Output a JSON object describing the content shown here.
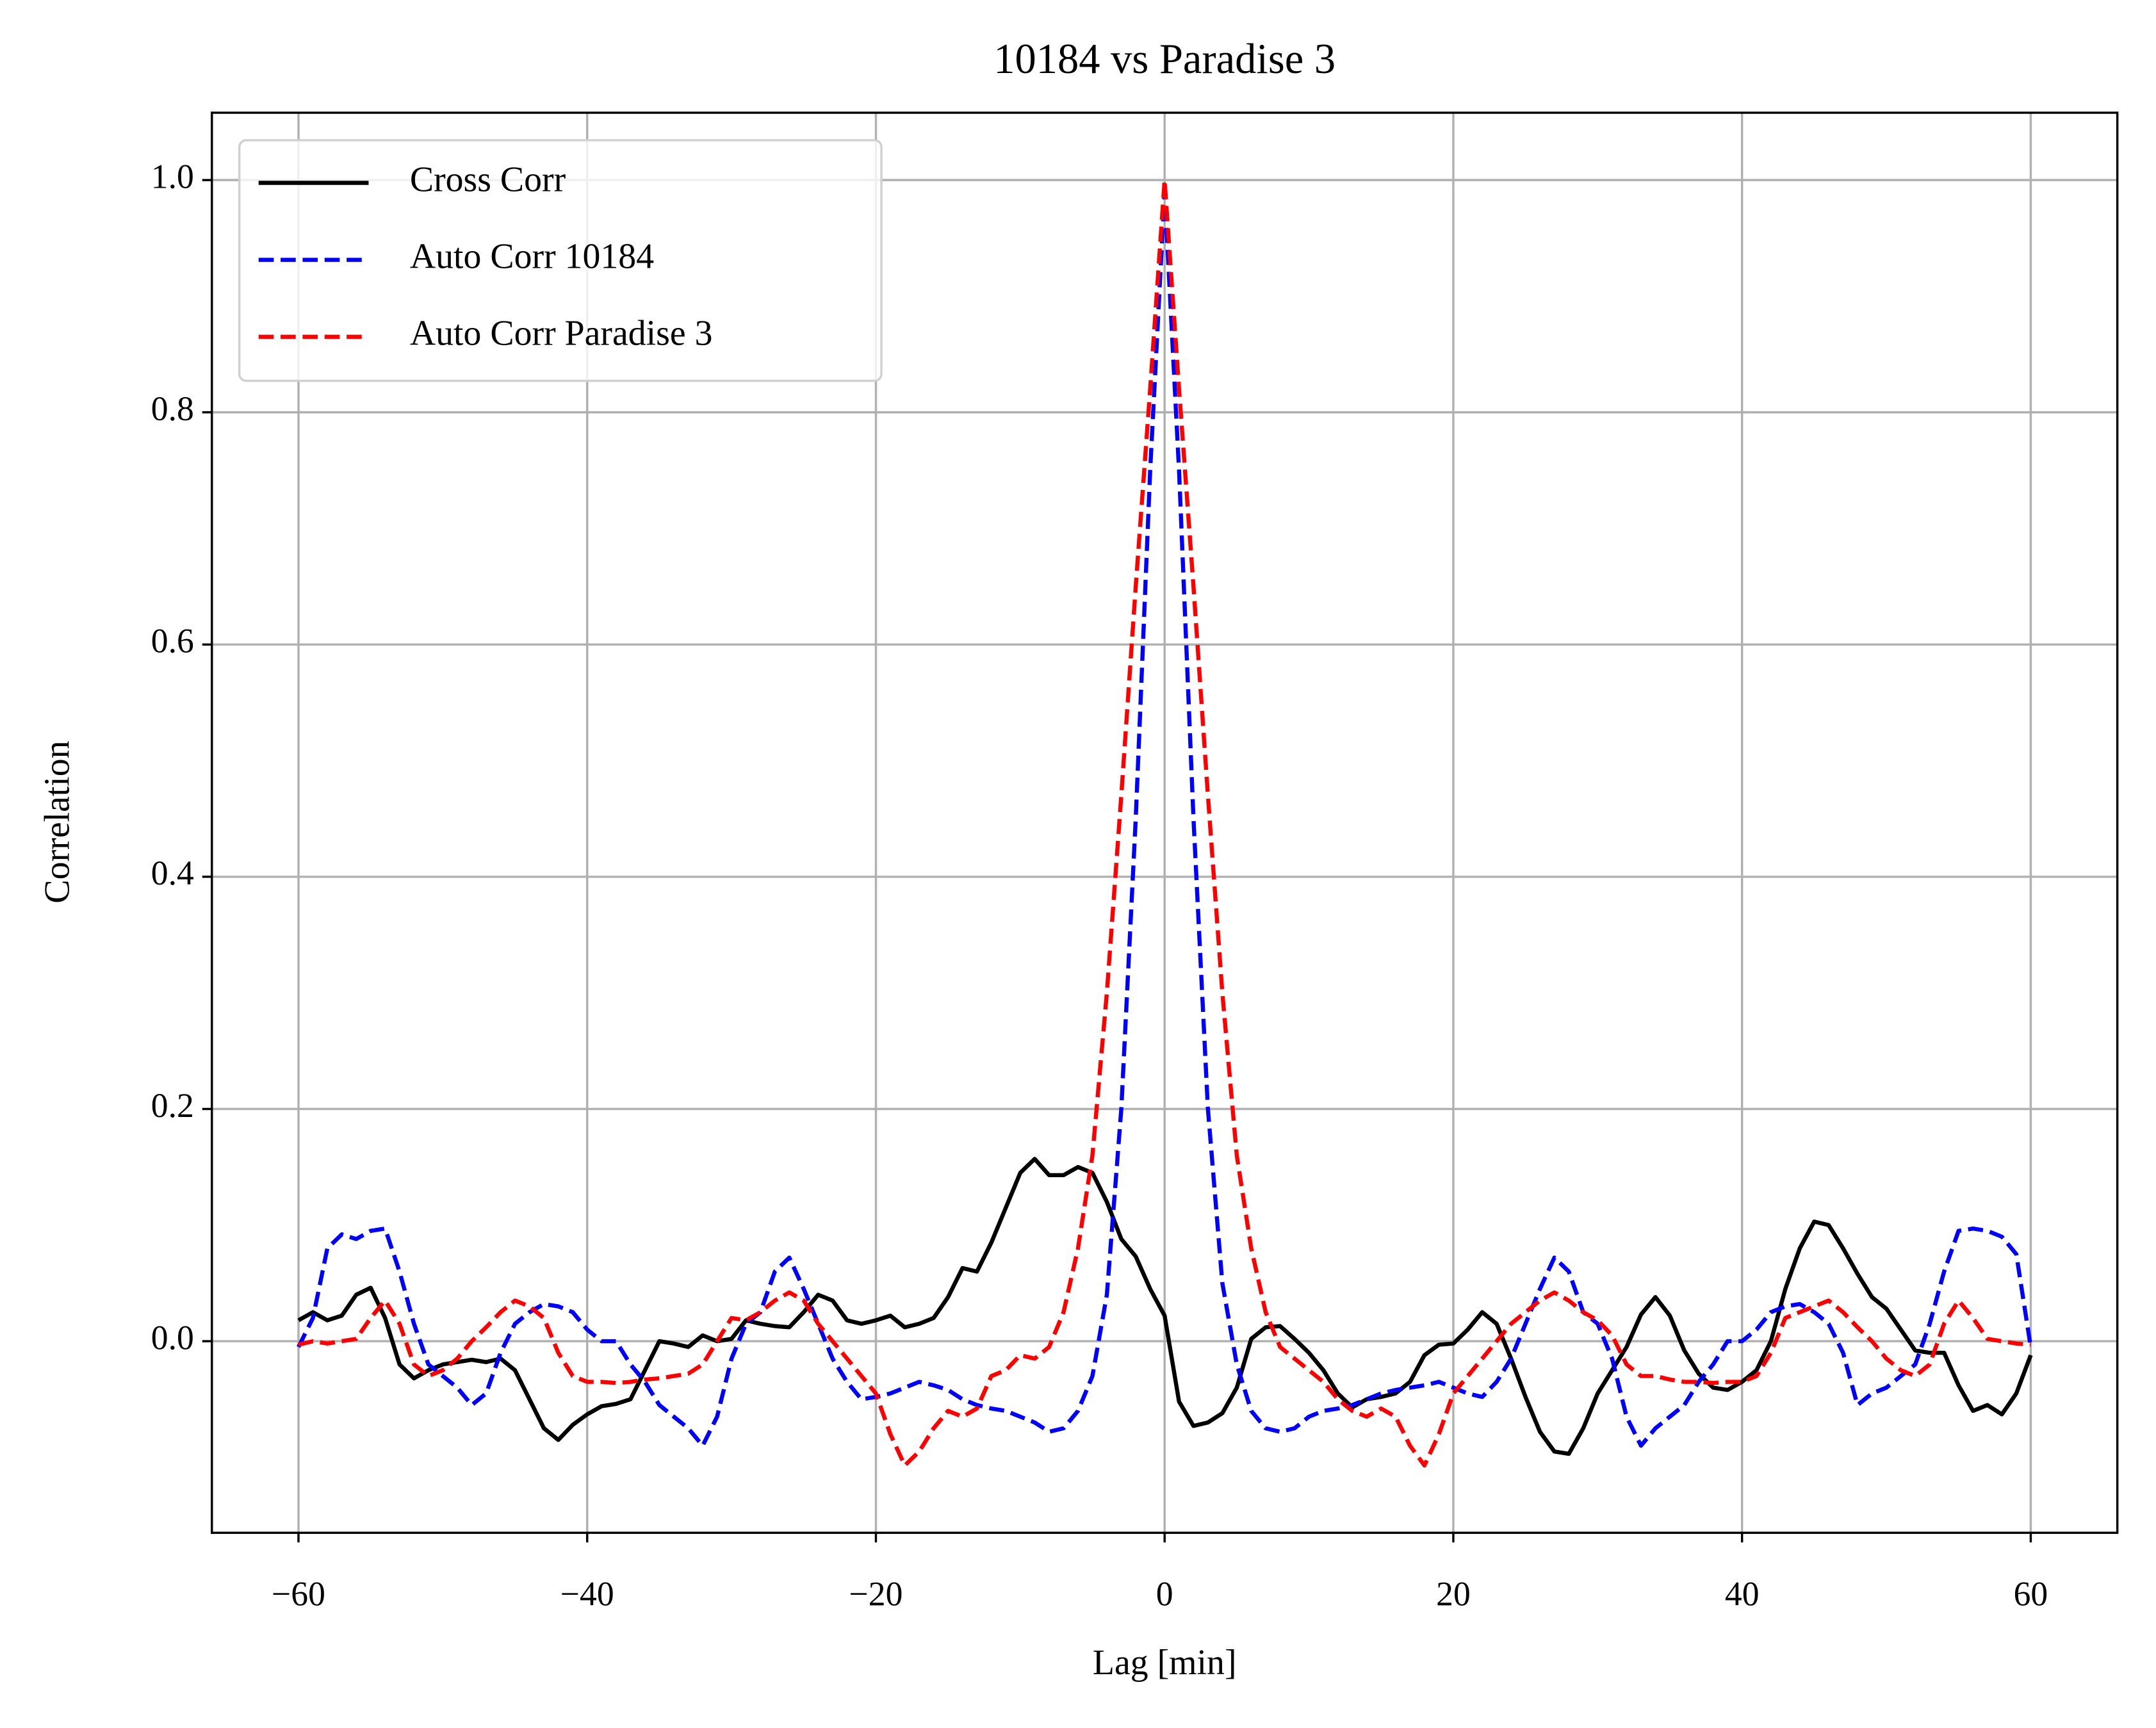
{
  "chart_data": {
    "type": "line",
    "title": "10184 vs Paradise 3",
    "xlabel": "Lag [min]",
    "ylabel": "Correlation",
    "xlim": [
      -66,
      66
    ],
    "ylim": [
      -0.165,
      1.058
    ],
    "xticks": [
      {
        "value": -60,
        "label": "−60"
      },
      {
        "value": -40,
        "label": "−40"
      },
      {
        "value": -20,
        "label": "−20"
      },
      0,
      20,
      40,
      60
    ],
    "yticks": [
      {
        "value": 0,
        "label": "0.0"
      },
      0.2,
      0.4,
      0.6,
      0.8,
      {
        "value": 1,
        "label": "1.0"
      }
    ],
    "grid": true,
    "legend": "upper left",
    "x": [
      -60,
      -59,
      -58,
      -57,
      -56,
      -55,
      -54,
      -53,
      -52,
      -51,
      -50,
      -49,
      -48,
      -47,
      -46,
      -45,
      -44,
      -43,
      -42,
      -41,
      -40,
      -39,
      -38,
      -37,
      -36,
      -35,
      -34,
      -33,
      -32,
      -31,
      -30,
      -29,
      -28,
      -27,
      -26,
      -25,
      -24,
      -23,
      -22,
      -21,
      -20,
      -19,
      -18,
      -17,
      -16,
      -15,
      -14,
      -13,
      -12,
      -11,
      -10,
      -9,
      -8,
      -7,
      -6,
      -5,
      -4,
      -3,
      -2,
      -1,
      0,
      1,
      2,
      3,
      4,
      5,
      6,
      7,
      8,
      9,
      10,
      11,
      12,
      13,
      14,
      15,
      16,
      17,
      18,
      19,
      20,
      21,
      22,
      23,
      24,
      25,
      26,
      27,
      28,
      29,
      30,
      31,
      32,
      33,
      34,
      35,
      36,
      37,
      38,
      39,
      40,
      41,
      42,
      43,
      44,
      45,
      46,
      47,
      48,
      49,
      50,
      51,
      52,
      53,
      54,
      55,
      56,
      57,
      58,
      59,
      60
    ],
    "series": [
      {
        "name": "Cross Corr",
        "color": "#000000",
        "dash": false,
        "values": [
          0.018,
          0.025,
          0.018,
          0.022,
          0.04,
          0.046,
          0.02,
          -0.02,
          -0.032,
          -0.025,
          -0.02,
          -0.018,
          -0.016,
          -0.018,
          -0.015,
          -0.025,
          -0.05,
          -0.075,
          -0.085,
          -0.072,
          -0.063,
          -0.056,
          -0.054,
          -0.05,
          -0.025,
          0.0,
          -0.002,
          -0.005,
          0.005,
          0.0,
          0.002,
          0.018,
          0.015,
          0.013,
          0.012,
          0.025,
          0.04,
          0.035,
          0.018,
          0.015,
          0.018,
          0.022,
          0.012,
          0.015,
          0.02,
          0.038,
          0.063,
          0.06,
          0.085,
          0.115,
          0.145,
          0.157,
          0.143,
          0.143,
          0.15,
          0.145,
          0.12,
          0.088,
          0.073,
          0.045,
          0.022,
          -0.052,
          -0.073,
          -0.07,
          -0.062,
          -0.04,
          0.002,
          0.012,
          0.013,
          0.002,
          -0.01,
          -0.025,
          -0.045,
          -0.057,
          -0.05,
          -0.048,
          -0.045,
          -0.035,
          -0.012,
          -0.003,
          -0.002,
          0.01,
          0.025,
          0.015,
          -0.015,
          -0.048,
          -0.078,
          -0.095,
          -0.097,
          -0.075,
          -0.045,
          -0.025,
          -0.005,
          0.023,
          0.038,
          0.022,
          -0.008,
          -0.028,
          -0.04,
          -0.042,
          -0.035,
          -0.025,
          0.0,
          0.045,
          0.08,
          0.103,
          0.1,
          0.08,
          0.058,
          0.038,
          0.028,
          0.01,
          -0.008,
          -0.01,
          -0.01,
          -0.038,
          -0.06,
          -0.055,
          -0.063,
          -0.045,
          -0.012
        ]
      },
      {
        "name": "Auto Corr 10184",
        "color": "#0000ff",
        "dash": true,
        "values": [
          -0.005,
          0.02,
          0.08,
          0.092,
          0.088,
          0.095,
          0.097,
          0.06,
          0.015,
          -0.02,
          -0.03,
          -0.04,
          -0.055,
          -0.045,
          -0.01,
          0.015,
          0.025,
          0.032,
          0.03,
          0.025,
          0.01,
          0.0,
          0.0,
          -0.02,
          -0.035,
          -0.055,
          -0.065,
          -0.075,
          -0.09,
          -0.065,
          -0.015,
          0.015,
          0.025,
          0.06,
          0.072,
          0.045,
          0.015,
          -0.015,
          -0.035,
          -0.05,
          -0.048,
          -0.045,
          -0.04,
          -0.035,
          -0.038,
          -0.042,
          -0.05,
          -0.055,
          -0.058,
          -0.06,
          -0.065,
          -0.07,
          -0.078,
          -0.075,
          -0.06,
          -0.03,
          0.04,
          0.2,
          0.45,
          0.75,
          0.99,
          0.75,
          0.45,
          0.2,
          0.05,
          -0.02,
          -0.06,
          -0.075,
          -0.078,
          -0.075,
          -0.065,
          -0.06,
          -0.058,
          -0.055,
          -0.05,
          -0.045,
          -0.042,
          -0.04,
          -0.038,
          -0.035,
          -0.04,
          -0.045,
          -0.048,
          -0.035,
          -0.015,
          0.015,
          0.045,
          0.072,
          0.06,
          0.025,
          0.015,
          -0.015,
          -0.065,
          -0.09,
          -0.075,
          -0.065,
          -0.055,
          -0.035,
          -0.02,
          0.0,
          0.0,
          0.01,
          0.025,
          0.03,
          0.032,
          0.025,
          0.015,
          -0.01,
          -0.055,
          -0.045,
          -0.04,
          -0.03,
          -0.02,
          0.015,
          0.06,
          0.095,
          0.097,
          0.095,
          0.09,
          0.075,
          -0.005
        ]
      },
      {
        "name": "Auto Corr Paradise 3",
        "color": "#ff0000",
        "dash": true,
        "values": [
          -0.003,
          0.0,
          -0.002,
          0.0,
          0.002,
          0.02,
          0.035,
          0.015,
          -0.02,
          -0.03,
          -0.025,
          -0.015,
          0.0,
          0.012,
          0.025,
          0.035,
          0.03,
          0.02,
          -0.01,
          -0.03,
          -0.035,
          -0.035,
          -0.036,
          -0.035,
          -0.033,
          -0.032,
          -0.03,
          -0.028,
          -0.02,
          0.0,
          0.02,
          0.018,
          0.025,
          0.035,
          0.042,
          0.035,
          0.015,
          0.0,
          -0.015,
          -0.03,
          -0.045,
          -0.08,
          -0.107,
          -0.095,
          -0.075,
          -0.06,
          -0.065,
          -0.058,
          -0.03,
          -0.025,
          -0.012,
          -0.015,
          -0.005,
          0.025,
          0.08,
          0.16,
          0.3,
          0.47,
          0.65,
          0.82,
          1.0,
          0.82,
          0.65,
          0.47,
          0.3,
          0.16,
          0.08,
          0.025,
          -0.005,
          -0.015,
          -0.025,
          -0.035,
          -0.05,
          -0.06,
          -0.065,
          -0.058,
          -0.065,
          -0.09,
          -0.107,
          -0.08,
          -0.045,
          -0.03,
          -0.015,
          0.0,
          0.015,
          0.025,
          0.035,
          0.042,
          0.035,
          0.025,
          0.018,
          0.005,
          -0.02,
          -0.03,
          -0.03,
          -0.033,
          -0.035,
          -0.035,
          -0.036,
          -0.035,
          -0.035,
          -0.03,
          -0.01,
          0.02,
          0.025,
          0.03,
          0.035,
          0.025,
          0.012,
          0.0,
          -0.015,
          -0.025,
          -0.03,
          -0.02,
          0.015,
          0.035,
          0.02,
          0.002,
          0.0,
          -0.002,
          -0.003
        ]
      }
    ]
  }
}
